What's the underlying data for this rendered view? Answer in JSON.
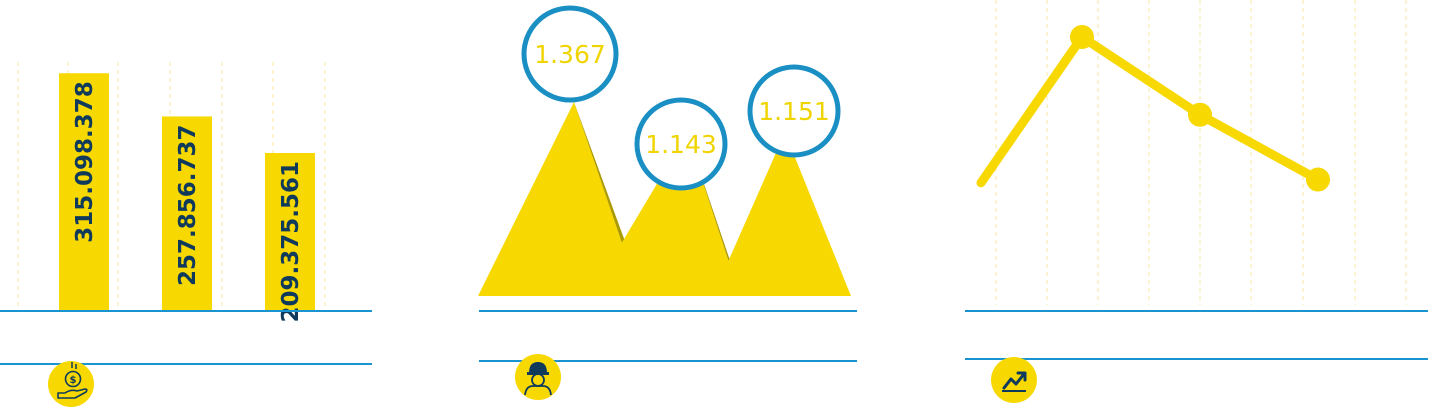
{
  "colors": {
    "accent_yellow": "#f7d800",
    "dark_yellow": "#ab9a00",
    "line_blue": "#1a94d0",
    "circle_blue": "#1a8fc4",
    "text_navy": "#0f3a5c",
    "grid_yellow": "#f6e9a0"
  },
  "icons": {
    "panel1": "money-hand-icon",
    "panel2": "worker-icon",
    "panel3": "trend-up-icon"
  },
  "chart_data": [
    {
      "type": "bar",
      "categories": [
        "",
        "",
        ""
      ],
      "values": [
        315098378,
        257856737,
        209375561
      ],
      "data_labels": [
        "315.098.378",
        "257.856.737",
        "209.375.561"
      ],
      "ylim": [
        0,
        330000000
      ],
      "grid": "vertical dashed"
    },
    {
      "type": "area",
      "style": "mountain peaks",
      "values": [
        1367,
        1143,
        1151
      ],
      "data_labels": [
        "1.367",
        "1.143",
        "1.151"
      ],
      "ylim": [
        0,
        1500
      ]
    },
    {
      "type": "line",
      "values": [
        0.55,
        1.0,
        0.76,
        0.56
      ],
      "markers": [
        false,
        true,
        true,
        true
      ],
      "ylim": [
        0,
        1.05
      ],
      "grid": "vertical dashed"
    }
  ]
}
